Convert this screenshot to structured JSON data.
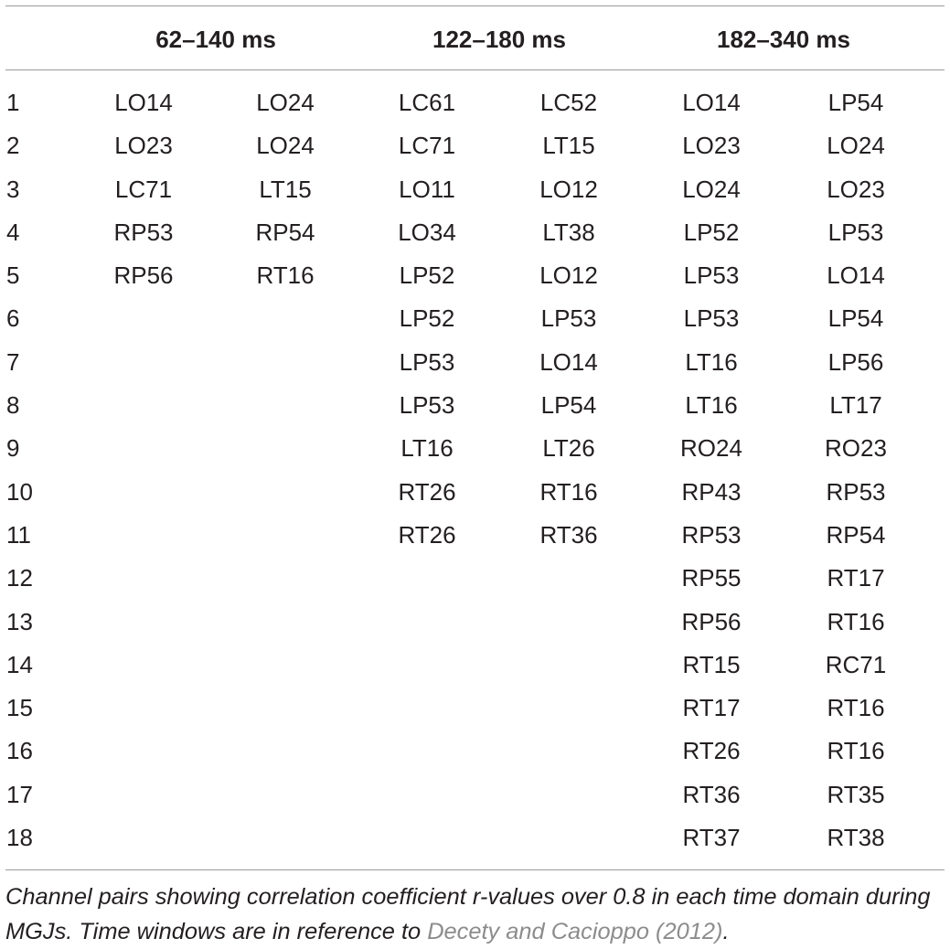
{
  "table": {
    "headers": [
      "62–140 ms",
      "122–180 ms",
      "182–340 ms"
    ],
    "rows": [
      [
        "1",
        "LO14",
        "LO24",
        "LC61",
        "LC52",
        "LO14",
        "LP54"
      ],
      [
        "2",
        "LO23",
        "LO24",
        "LC71",
        "LT15",
        "LO23",
        "LO24"
      ],
      [
        "3",
        "LC71",
        "LT15",
        "LO11",
        "LO12",
        "LO24",
        "LO23"
      ],
      [
        "4",
        "RP53",
        "RP54",
        "LO34",
        "LT38",
        "LP52",
        "LP53"
      ],
      [
        "5",
        "RP56",
        "RT16",
        "LP52",
        "LO12",
        "LP53",
        "LO14"
      ],
      [
        "6",
        "",
        "",
        "LP52",
        "LP53",
        "LP53",
        "LP54"
      ],
      [
        "7",
        "",
        "",
        "LP53",
        "LO14",
        "LT16",
        "LP56"
      ],
      [
        "8",
        "",
        "",
        "LP53",
        "LP54",
        "LT16",
        "LT17"
      ],
      [
        "9",
        "",
        "",
        "LT16",
        "LT26",
        "RO24",
        "RO23"
      ],
      [
        "10",
        "",
        "",
        "RT26",
        "RT16",
        "RP43",
        "RP53"
      ],
      [
        "11",
        "",
        "",
        "RT26",
        "RT36",
        "RP53",
        "RP54"
      ],
      [
        "12",
        "",
        "",
        "",
        "",
        "RP55",
        "RT17"
      ],
      [
        "13",
        "",
        "",
        "",
        "",
        "RP56",
        "RT16"
      ],
      [
        "14",
        "",
        "",
        "",
        "",
        "RT15",
        "RC71"
      ],
      [
        "15",
        "",
        "",
        "",
        "",
        "RT17",
        "RT16"
      ],
      [
        "16",
        "",
        "",
        "",
        "",
        "RT26",
        "RT16"
      ],
      [
        "17",
        "",
        "",
        "",
        "",
        "RT36",
        "RT35"
      ],
      [
        "18",
        "",
        "",
        "",
        "",
        "RT37",
        "RT38"
      ]
    ]
  },
  "caption": {
    "text": "Channel pairs showing correlation coefficient r-values over 0.8 in each time domain during MGJs. Time windows are in reference to ",
    "reference": "Decety and Cacioppo (2012)",
    "end": "."
  },
  "colors": {
    "text": "#231f20",
    "rule": "#9a9a9a",
    "reference_link": "#8c8c8c"
  }
}
